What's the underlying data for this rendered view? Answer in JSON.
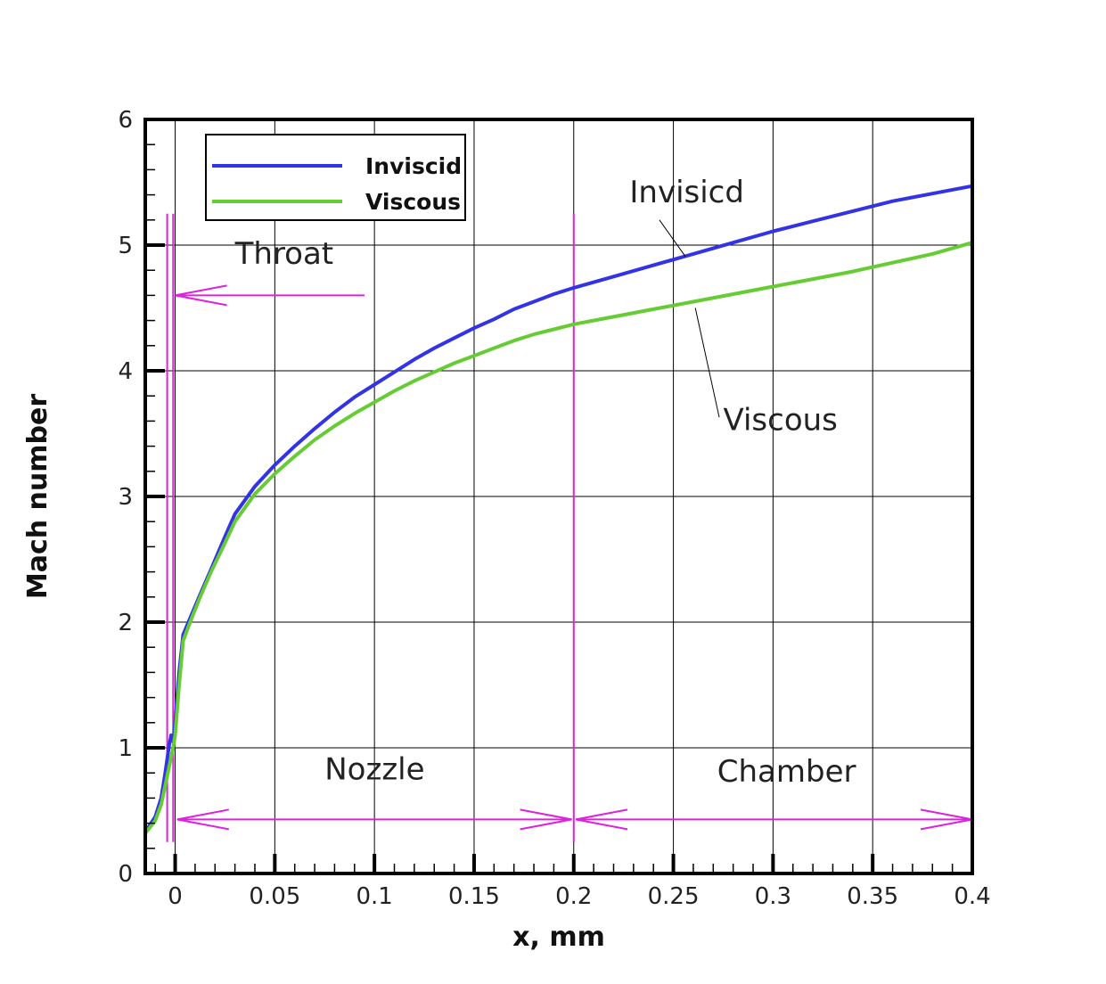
{
  "chart_data": {
    "type": "line",
    "xlabel": "x, mm",
    "ylabel": "Mach number",
    "xlim": [
      -0.015,
      0.4
    ],
    "ylim": [
      0,
      6
    ],
    "xticks": [
      0,
      0.05,
      0.1,
      0.15,
      0.2,
      0.25,
      0.3,
      0.35,
      0.4
    ],
    "xtick_labels": [
      "0",
      "0.05",
      "0.1",
      "0.15",
      "0.2",
      "0.25",
      "0.3",
      "0.35",
      "0.4"
    ],
    "yticks": [
      0,
      1,
      2,
      3,
      4,
      5,
      6
    ],
    "ytick_labels": [
      "0",
      "1",
      "2",
      "3",
      "4",
      "5",
      "6"
    ],
    "grid": true,
    "legend_position": "top-left",
    "series": [
      {
        "name": "Inviscid",
        "color": "#3333e6",
        "points": [
          [
            -0.015,
            0.33
          ],
          [
            -0.01,
            0.45
          ],
          [
            -0.007,
            0.6
          ],
          [
            -0.005,
            0.8
          ],
          [
            -0.003,
            1.02
          ],
          [
            -0.002,
            1.1
          ],
          [
            -0.001,
            1.05
          ],
          [
            0,
            1.2
          ],
          [
            0.002,
            1.6
          ],
          [
            0.004,
            1.9
          ],
          [
            0.008,
            2.05
          ],
          [
            0.012,
            2.2
          ],
          [
            0.018,
            2.42
          ],
          [
            0.025,
            2.68
          ],
          [
            0.03,
            2.86
          ],
          [
            0.04,
            3.08
          ],
          [
            0.05,
            3.25
          ],
          [
            0.06,
            3.4
          ],
          [
            0.07,
            3.54
          ],
          [
            0.08,
            3.67
          ],
          [
            0.09,
            3.79
          ],
          [
            0.1,
            3.89
          ],
          [
            0.11,
            3.99
          ],
          [
            0.12,
            4.09
          ],
          [
            0.13,
            4.18
          ],
          [
            0.14,
            4.26
          ],
          [
            0.15,
            4.34
          ],
          [
            0.16,
            4.41
          ],
          [
            0.17,
            4.49
          ],
          [
            0.18,
            4.55
          ],
          [
            0.19,
            4.61
          ],
          [
            0.2,
            4.66
          ],
          [
            0.22,
            4.75
          ],
          [
            0.24,
            4.84
          ],
          [
            0.26,
            4.93
          ],
          [
            0.28,
            5.02
          ],
          [
            0.3,
            5.11
          ],
          [
            0.32,
            5.19
          ],
          [
            0.34,
            5.27
          ],
          [
            0.36,
            5.35
          ],
          [
            0.38,
            5.41
          ],
          [
            0.4,
            5.47
          ]
        ]
      },
      {
        "name": "Viscous",
        "color": "#66cc33",
        "points": [
          [
            -0.015,
            0.32
          ],
          [
            -0.01,
            0.42
          ],
          [
            -0.007,
            0.55
          ],
          [
            -0.005,
            0.7
          ],
          [
            -0.003,
            0.85
          ],
          [
            -0.001,
            1.0
          ],
          [
            0,
            1.1
          ],
          [
            0.002,
            1.5
          ],
          [
            0.004,
            1.85
          ],
          [
            0.008,
            2.02
          ],
          [
            0.012,
            2.18
          ],
          [
            0.018,
            2.4
          ],
          [
            0.025,
            2.63
          ],
          [
            0.03,
            2.8
          ],
          [
            0.04,
            3.02
          ],
          [
            0.05,
            3.18
          ],
          [
            0.06,
            3.32
          ],
          [
            0.07,
            3.45
          ],
          [
            0.08,
            3.56
          ],
          [
            0.09,
            3.66
          ],
          [
            0.1,
            3.75
          ],
          [
            0.11,
            3.84
          ],
          [
            0.12,
            3.92
          ],
          [
            0.13,
            3.99
          ],
          [
            0.14,
            4.06
          ],
          [
            0.15,
            4.12
          ],
          [
            0.16,
            4.18
          ],
          [
            0.17,
            4.24
          ],
          [
            0.18,
            4.29
          ],
          [
            0.19,
            4.33
          ],
          [
            0.2,
            4.37
          ],
          [
            0.22,
            4.43
          ],
          [
            0.24,
            4.49
          ],
          [
            0.26,
            4.55
          ],
          [
            0.28,
            4.61
          ],
          [
            0.3,
            4.67
          ],
          [
            0.32,
            4.73
          ],
          [
            0.34,
            4.79
          ],
          [
            0.36,
            4.86
          ],
          [
            0.38,
            4.93
          ],
          [
            0.4,
            5.02
          ]
        ]
      }
    ],
    "reference_lines": {
      "color": "#dd22dd",
      "vertical_x": [
        -0.004,
        -0.001,
        0.2
      ],
      "vertical_y_range": [
        0.25,
        5.25
      ]
    },
    "annotations": [
      {
        "text": "Throat",
        "x": 0.03,
        "y": 4.85
      },
      {
        "text": "Nozzle",
        "x": 0.075,
        "y": 0.75
      },
      {
        "text": "Chamber",
        "x": 0.272,
        "y": 0.73
      },
      {
        "text": "Invisicd",
        "x": 0.228,
        "y": 5.34
      },
      {
        "text": "Viscous",
        "x": 0.275,
        "y": 3.53
      }
    ],
    "arrows": [
      {
        "from": [
          0.095,
          4.6
        ],
        "to": [
          0.0,
          4.6
        ]
      },
      {
        "from": [
          0.1,
          0.43
        ],
        "to": [
          0.001,
          0.43
        ]
      },
      {
        "from": [
          0.1,
          0.43
        ],
        "to": [
          0.199,
          0.43
        ]
      },
      {
        "from": [
          0.3,
          0.43
        ],
        "to": [
          0.201,
          0.43
        ]
      },
      {
        "from": [
          0.3,
          0.43
        ],
        "to": [
          0.4,
          0.43
        ]
      }
    ],
    "leaders": [
      {
        "from": [
          0.243,
          5.2
        ],
        "to": [
          0.256,
          4.91
        ]
      },
      {
        "from": [
          0.273,
          3.63
        ],
        "to": [
          0.261,
          4.5
        ]
      }
    ]
  }
}
